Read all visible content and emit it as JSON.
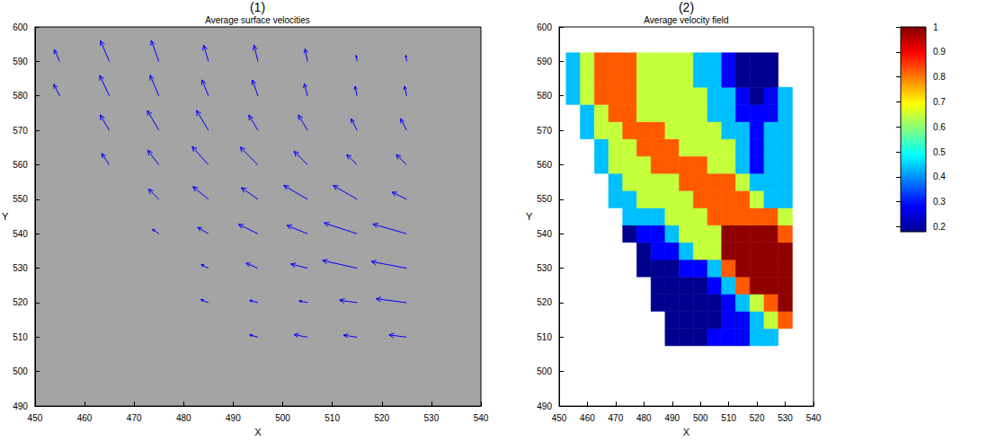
{
  "chart_data": [
    {
      "type": "quiver",
      "panel_label": "(1)",
      "title": "Average surface velocities",
      "xlabel": "X",
      "ylabel": "Y",
      "xlim": [
        450,
        540
      ],
      "xticks": [
        450,
        460,
        470,
        480,
        490,
        500,
        510,
        520,
        530,
        540
      ],
      "ylim": [
        490,
        600
      ],
      "yticks": [
        490,
        500,
        510,
        520,
        530,
        540,
        550,
        560,
        570,
        580,
        590,
        600
      ],
      "color": "#0000ff",
      "x": [
        495,
        505,
        515,
        525,
        485,
        495,
        505,
        515,
        525,
        485,
        495,
        505,
        515,
        525,
        475,
        485,
        495,
        505,
        515,
        525,
        475,
        485,
        495,
        505,
        515,
        525,
        465,
        475,
        485,
        495,
        505,
        515,
        525,
        465,
        475,
        485,
        495,
        505,
        515,
        525,
        455,
        465,
        475,
        485,
        495,
        505,
        515,
        525,
        455,
        465,
        475,
        485,
        495,
        505,
        515,
        525
      ],
      "y": [
        510,
        510,
        510,
        510,
        520,
        520,
        520,
        520,
        520,
        530,
        530,
        530,
        530,
        530,
        540,
        540,
        540,
        540,
        540,
        540,
        550,
        550,
        550,
        550,
        550,
        550,
        560,
        560,
        560,
        560,
        560,
        560,
        560,
        570,
        570,
        570,
        570,
        570,
        570,
        570,
        580,
        580,
        580,
        580,
        580,
        580,
        580,
        580,
        590,
        590,
        590,
        590,
        590,
        590,
        590,
        590
      ],
      "u": [
        -0.21,
        -0.34,
        -0.34,
        -0.44,
        -0.19,
        -0.21,
        -0.21,
        -0.44,
        -0.77,
        -0.18,
        -0.3,
        -0.42,
        -0.87,
        -0.89,
        -0.16,
        -0.27,
        -0.49,
        -0.52,
        -0.83,
        -0.85,
        -0.26,
        -0.39,
        -0.42,
        -0.6,
        -0.6,
        -0.37,
        -0.19,
        -0.28,
        -0.41,
        -0.45,
        -0.34,
        -0.26,
        -0.26,
        -0.23,
        -0.29,
        -0.3,
        -0.23,
        -0.23,
        -0.15,
        -0.15,
        -0.15,
        -0.24,
        -0.22,
        -0.16,
        -0.14,
        -0.08,
        -0.05,
        -0.05,
        -0.14,
        -0.22,
        -0.19,
        -0.12,
        -0.1,
        -0.06,
        -0.02,
        -0.02
      ],
      "v": [
        0.08,
        0.09,
        0.07,
        0.08,
        0.11,
        0.08,
        0.06,
        0.09,
        0.14,
        0.13,
        0.18,
        0.15,
        0.28,
        0.24,
        0.16,
        0.23,
        0.34,
        0.3,
        0.39,
        0.35,
        0.37,
        0.46,
        0.42,
        0.5,
        0.5,
        0.26,
        0.41,
        0.53,
        0.66,
        0.64,
        0.49,
        0.37,
        0.37,
        0.56,
        0.72,
        0.72,
        0.55,
        0.56,
        0.42,
        0.42,
        0.42,
        0.74,
        0.75,
        0.58,
        0.58,
        0.44,
        0.35,
        0.35,
        0.43,
        0.75,
        0.76,
        0.59,
        0.59,
        0.45,
        0.22,
        0.22
      ]
    },
    {
      "type": "contour",
      "panel_label": "(2)",
      "title": "Average velocity field",
      "xlabel": "X",
      "ylabel": "Y",
      "xlim": [
        450,
        540
      ],
      "xticks": [
        450,
        460,
        470,
        480,
        490,
        500,
        510,
        520,
        530,
        540
      ],
      "ylim": [
        490,
        600
      ],
      "yticks": [
        490,
        500,
        510,
        520,
        530,
        540,
        550,
        560,
        570,
        580,
        590,
        600
      ],
      "x": [
        455,
        460,
        465,
        470,
        475,
        480,
        485,
        490,
        495,
        500,
        505,
        510,
        515,
        520,
        525,
        530
      ],
      "y": [
        510,
        515,
        520,
        525,
        530,
        535,
        540,
        545,
        550,
        555,
        560,
        565,
        570,
        575,
        580,
        585,
        590
      ],
      "z": [
        [
          null,
          null,
          null,
          null,
          null,
          null,
          null,
          0.22,
          0.22,
          0.22,
          0.35,
          0.35,
          0.35,
          0.45,
          0.45,
          null
        ],
        [
          null,
          null,
          null,
          null,
          null,
          null,
          null,
          0.22,
          0.22,
          0.22,
          0.22,
          0.35,
          0.35,
          0.45,
          0.6,
          0.78
        ],
        [
          null,
          null,
          null,
          null,
          null,
          null,
          0.22,
          0.22,
          0.22,
          0.22,
          0.22,
          0.35,
          0.45,
          0.6,
          0.78,
          0.92
        ],
        [
          null,
          null,
          null,
          null,
          null,
          null,
          0.22,
          0.22,
          0.22,
          0.22,
          0.35,
          0.45,
          0.78,
          0.92,
          0.92,
          0.92
        ],
        [
          null,
          null,
          null,
          null,
          null,
          0.22,
          0.22,
          0.22,
          0.35,
          0.35,
          0.45,
          0.78,
          0.92,
          0.92,
          0.92,
          0.92
        ],
        [
          null,
          null,
          null,
          null,
          null,
          0.22,
          0.35,
          0.35,
          0.45,
          0.6,
          0.6,
          0.92,
          0.92,
          0.92,
          0.92,
          0.92
        ],
        [
          null,
          null,
          null,
          null,
          0.22,
          0.35,
          0.35,
          0.45,
          0.6,
          0.6,
          0.6,
          0.92,
          0.92,
          0.92,
          0.92,
          0.78
        ],
        [
          null,
          null,
          null,
          null,
          0.45,
          0.45,
          0.45,
          0.6,
          0.6,
          0.6,
          0.78,
          0.78,
          0.78,
          0.78,
          0.78,
          0.6
        ],
        [
          null,
          null,
          null,
          0.45,
          0.45,
          0.6,
          0.6,
          0.6,
          0.6,
          0.78,
          0.78,
          0.78,
          0.78,
          0.6,
          0.45,
          0.45
        ],
        [
          null,
          null,
          null,
          0.45,
          0.6,
          0.6,
          0.6,
          0.6,
          0.78,
          0.78,
          0.78,
          0.78,
          0.6,
          0.45,
          0.45,
          0.45
        ],
        [
          null,
          null,
          0.45,
          0.6,
          0.6,
          0.6,
          0.78,
          0.78,
          0.78,
          0.78,
          0.6,
          0.6,
          0.45,
          0.35,
          0.45,
          0.45
        ],
        [
          null,
          null,
          0.45,
          0.6,
          0.6,
          0.78,
          0.78,
          0.78,
          0.6,
          0.6,
          0.6,
          0.6,
          0.45,
          0.35,
          0.45,
          0.45
        ],
        [
          null,
          0.45,
          0.6,
          0.6,
          0.78,
          0.78,
          0.78,
          0.6,
          0.6,
          0.6,
          0.6,
          0.45,
          0.45,
          0.35,
          0.45,
          0.45
        ],
        [
          null,
          0.45,
          0.6,
          0.78,
          0.78,
          0.6,
          0.6,
          0.6,
          0.6,
          0.6,
          0.45,
          0.45,
          0.35,
          0.35,
          0.35,
          0.45
        ],
        [
          0.45,
          0.6,
          0.78,
          0.78,
          0.78,
          0.6,
          0.6,
          0.6,
          0.6,
          0.6,
          0.45,
          0.45,
          0.35,
          0.22,
          0.35,
          0.45
        ],
        [
          0.45,
          0.6,
          0.78,
          0.78,
          0.78,
          0.6,
          0.6,
          0.6,
          0.6,
          0.45,
          0.45,
          0.35,
          0.22,
          0.22,
          0.22,
          null
        ],
        [
          0.45,
          0.6,
          0.78,
          0.78,
          0.78,
          0.6,
          0.6,
          0.6,
          0.6,
          0.45,
          0.45,
          0.35,
          0.22,
          0.22,
          0.22,
          null
        ]
      ],
      "levels": [
        0.18,
        0.3,
        0.4,
        0.5,
        0.7,
        0.85,
        1
      ],
      "colors": [
        "#00008f",
        "#0000ff",
        "#00bfff",
        "#c4ff3b",
        "#ff5a00",
        "#8f0000"
      ],
      "colorbar": {
        "range": [
          0.18,
          1
        ],
        "ticks": [
          0.2,
          0.3,
          0.4,
          0.5,
          0.6,
          0.7,
          0.8,
          0.9,
          1
        ]
      }
    }
  ]
}
